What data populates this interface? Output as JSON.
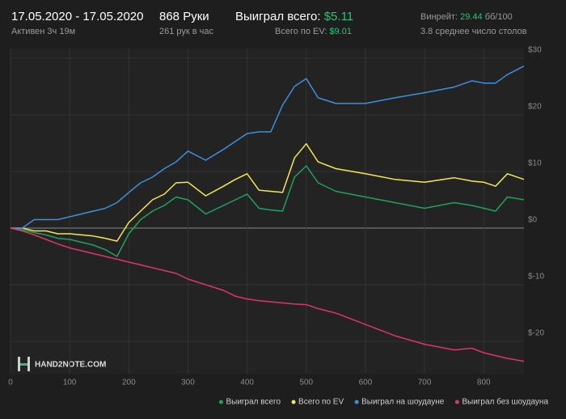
{
  "header": {
    "date_range": "17.05.2020 - 17.05.2020",
    "active": "Активен 3ч 19м",
    "hands": "868 Руки",
    "hands_per_hour": "261 рук в час",
    "won_label": "Выиграл всего:",
    "won_value": "$5.11",
    "ev_label": "Всего по EV:",
    "ev_value": "$9.01",
    "winrate_label": "Винрейт:",
    "winrate_value": "29.44",
    "winrate_unit": "бб/100",
    "tables": "3.8 среднее число столов"
  },
  "logo": "HAND2NOTE.COM",
  "chart_data": {
    "type": "line",
    "legend": "bottom-right",
    "grid": true,
    "x": [
      0,
      20,
      40,
      60,
      80,
      100,
      120,
      140,
      160,
      180,
      200,
      220,
      240,
      260,
      280,
      300,
      330,
      360,
      380,
      400,
      420,
      440,
      460,
      480,
      500,
      520,
      550,
      600,
      650,
      700,
      750,
      780,
      800,
      820,
      840,
      868
    ],
    "xlim": [
      0,
      868
    ],
    "xticks": [
      0,
      100,
      200,
      300,
      400,
      500,
      600,
      700,
      800
    ],
    "ylim": [
      -25.7,
      31.7
    ],
    "yticks": [
      {
        "value": -20,
        "label": "$-20"
      },
      {
        "value": -10,
        "label": "$-10"
      },
      {
        "value": 0,
        "label": "$0"
      },
      {
        "value": 10,
        "label": "$10"
      },
      {
        "value": 20,
        "label": "$20"
      },
      {
        "value": 30,
        "label": "$30"
      }
    ],
    "series": [
      {
        "name": "Выиграл всего",
        "color": "#1fa35c",
        "values": [
          0,
          -0.3,
          -0.8,
          -1.2,
          -1.8,
          -2,
          -2.5,
          -3,
          -3.8,
          -5,
          -1,
          1.5,
          3,
          4,
          5.5,
          5,
          2.5,
          4,
          5,
          6,
          3.5,
          3.2,
          3,
          9,
          11,
          8,
          6.5,
          5.5,
          4.5,
          3.5,
          4.5,
          4,
          3.5,
          3,
          5.5,
          5
        ]
      },
      {
        "name": "Всего по EV",
        "color": "#f2e94e",
        "values": [
          0,
          0,
          -0.5,
          -0.5,
          -1,
          -1,
          -1.2,
          -1.4,
          -1.8,
          -2.3,
          1,
          3,
          5,
          6,
          8,
          8.1,
          5.7,
          7.4,
          8.6,
          9.6,
          6.7,
          6.5,
          6.3,
          12.4,
          14.9,
          11.7,
          10.5,
          9.6,
          8.6,
          8.1,
          8.9,
          8.3,
          8.1,
          7.4,
          9.6,
          8.6
        ]
      },
      {
        "name": "Выиграл на шоудауне",
        "color": "#3d8fe0",
        "values": [
          0,
          0,
          1.5,
          1.5,
          1.5,
          2,
          2.5,
          3,
          3.5,
          4.5,
          6.3,
          8,
          9,
          10.5,
          11.7,
          13.6,
          12,
          13.9,
          15.3,
          16.7,
          17,
          17,
          21.7,
          25,
          26.4,
          23,
          22,
          22,
          23,
          23.9,
          24.9,
          26,
          25.6,
          25.6,
          27.1,
          28.6
        ]
      },
      {
        "name": "Выиграл без шоудауна",
        "color": "#e0336b",
        "values": [
          0,
          -0.5,
          -1.2,
          -2,
          -2.8,
          -3.5,
          -4,
          -4.5,
          -5,
          -5.5,
          -6,
          -6.5,
          -7,
          -7.5,
          -8,
          -9,
          -10,
          -11,
          -12,
          -12.5,
          -12.8,
          -13,
          -13.2,
          -13.4,
          -13.5,
          -14.2,
          -15,
          -17,
          -19,
          -20.5,
          -21.5,
          -21.2,
          -22,
          -22.5,
          -23,
          -23.5
        ]
      }
    ]
  }
}
